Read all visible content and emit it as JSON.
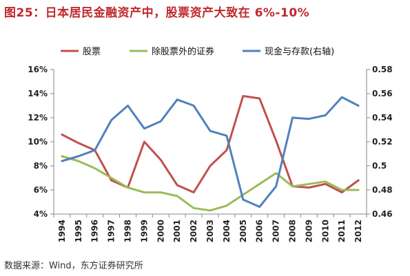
{
  "figure": {
    "title": "图25：日本居民金融资产中，股票资产大致在 6%-10%",
    "source": "数据来源：Wind，东方证券研究所"
  },
  "colors": {
    "title": "#c0282d",
    "stocks": "#c0504d",
    "non_stock_securities": "#9bbb59",
    "cash_deposits": "#4f81bd"
  },
  "chart_data": {
    "type": "line",
    "x": [
      "1994",
      "1995",
      "1996",
      "1997",
      "1998",
      "1999",
      "2000",
      "2001",
      "2002",
      "2003",
      "2004",
      "2005",
      "2006",
      "2007",
      "2008",
      "2009",
      "2010",
      "2011",
      "2012"
    ],
    "left_axis": {
      "ylim": [
        0.04,
        0.16
      ],
      "ticks": [
        0.04,
        0.06,
        0.08,
        0.1,
        0.12,
        0.14,
        0.16
      ],
      "tick_labels": [
        "4%",
        "6%",
        "8%",
        "10%",
        "12%",
        "14%",
        "16%"
      ]
    },
    "right_axis": {
      "ylim": [
        0.46,
        0.58
      ],
      "ticks": [
        0.46,
        0.48,
        0.5,
        0.52,
        0.54,
        0.56,
        0.58
      ],
      "tick_labels": [
        "0.46",
        "0.48",
        "0.5",
        "0.52",
        "0.54",
        "0.56",
        "0.58"
      ]
    },
    "legend_position": "top",
    "grid": false,
    "series": [
      {
        "name": "股票",
        "axis": "left",
        "color": "#c0504d",
        "values": [
          0.106,
          0.099,
          0.093,
          0.068,
          0.062,
          0.1,
          0.085,
          0.064,
          0.058,
          0.08,
          0.093,
          0.138,
          0.136,
          0.101,
          0.063,
          0.062,
          0.065,
          0.058,
          0.068
        ]
      },
      {
        "name": "除股票外的证券",
        "axis": "left",
        "color": "#9bbb59",
        "values": [
          0.088,
          0.084,
          0.078,
          0.07,
          0.062,
          0.058,
          0.058,
          0.055,
          0.045,
          0.043,
          0.047,
          0.056,
          0.065,
          0.074,
          0.063,
          0.065,
          0.067,
          0.06,
          0.06
        ]
      },
      {
        "name": "现金与存款(右轴)",
        "axis": "right",
        "color": "#4f81bd",
        "values": [
          0.504,
          0.508,
          0.513,
          0.538,
          0.55,
          0.531,
          0.537,
          0.555,
          0.55,
          0.529,
          0.525,
          0.472,
          0.466,
          0.483,
          0.54,
          0.539,
          0.542,
          0.557,
          0.55
        ]
      }
    ]
  }
}
